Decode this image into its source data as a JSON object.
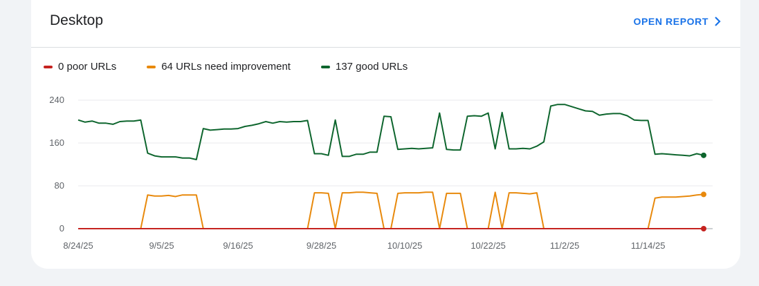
{
  "card": {
    "title": "Desktop",
    "open_report_label": "OPEN REPORT",
    "open_report_icon": "chevron-right-icon"
  },
  "legend": [
    {
      "label": "0 poor URLs",
      "color": "#c5221f"
    },
    {
      "label": "64 URLs need improvement",
      "color": "#e8890c"
    },
    {
      "label": "137 good URLs",
      "color": "#0d652d"
    }
  ],
  "chart_data": {
    "type": "line",
    "title": "",
    "xlabel": "",
    "ylabel": "",
    "ylim": [
      0,
      240
    ],
    "yticks": [
      0,
      80,
      160,
      240
    ],
    "x_tick_labels": [
      "8/24/25",
      "9/5/25",
      "9/16/25",
      "9/28/25",
      "10/10/25",
      "10/22/25",
      "11/2/25",
      "11/14/25"
    ],
    "x_tick_indices": [
      0,
      12,
      23,
      35,
      47,
      59,
      70,
      82
    ],
    "grid": true,
    "legend_position": "top-left",
    "series": [
      {
        "name": "137 good URLs",
        "color": "#0d652d",
        "values": [
          203,
          199,
          201,
          197,
          197,
          195,
          200,
          201,
          201,
          203,
          141,
          136,
          134,
          134,
          134,
          132,
          132,
          129,
          187,
          184,
          185,
          186,
          186,
          187,
          191,
          193,
          196,
          200,
          197,
          200,
          199,
          200,
          200,
          202,
          140,
          140,
          137,
          203,
          135,
          135,
          139,
          139,
          143,
          143,
          210,
          209,
          148,
          149,
          150,
          149,
          150,
          151,
          216,
          148,
          147,
          147,
          210,
          211,
          210,
          216,
          149,
          217,
          149,
          149,
          150,
          149,
          154,
          162,
          229,
          232,
          232,
          228,
          224,
          220,
          219,
          212,
          214,
          215,
          215,
          211,
          203,
          202,
          202,
          139,
          140,
          139,
          138,
          137,
          136,
          140,
          137
        ]
      },
      {
        "name": "64 URLs need improvement",
        "color": "#e8890c",
        "values": [
          0,
          0,
          0,
          0,
          0,
          0,
          0,
          0,
          0,
          0,
          63,
          61,
          61,
          62,
          60,
          63,
          63,
          63,
          0,
          0,
          0,
          0,
          0,
          0,
          0,
          0,
          0,
          0,
          0,
          0,
          0,
          0,
          0,
          0,
          67,
          67,
          66,
          0,
          67,
          67,
          68,
          68,
          67,
          66,
          0,
          0,
          66,
          67,
          67,
          67,
          68,
          68,
          0,
          66,
          66,
          66,
          0,
          0,
          0,
          0,
          68,
          0,
          67,
          67,
          66,
          65,
          67,
          0,
          0,
          0,
          0,
          0,
          0,
          0,
          0,
          0,
          0,
          0,
          0,
          0,
          0,
          0,
          0,
          57,
          59,
          59,
          59,
          60,
          61,
          63,
          64
        ]
      },
      {
        "name": "0 poor URLs",
        "color": "#c5221f",
        "values": [
          0,
          0,
          0,
          0,
          0,
          0,
          0,
          0,
          0,
          0,
          0,
          0,
          0,
          0,
          0,
          0,
          0,
          0,
          0,
          0,
          0,
          0,
          0,
          0,
          0,
          0,
          0,
          0,
          0,
          0,
          0,
          0,
          0,
          0,
          0,
          0,
          0,
          0,
          0,
          0,
          0,
          0,
          0,
          0,
          0,
          0,
          0,
          0,
          0,
          0,
          0,
          0,
          0,
          0,
          0,
          0,
          0,
          0,
          0,
          0,
          0,
          0,
          0,
          0,
          0,
          0,
          0,
          0,
          0,
          0,
          0,
          0,
          0,
          0,
          0,
          0,
          0,
          0,
          0,
          0,
          0,
          0,
          0,
          0,
          0,
          0,
          0,
          0,
          0,
          0,
          0
        ]
      }
    ]
  }
}
